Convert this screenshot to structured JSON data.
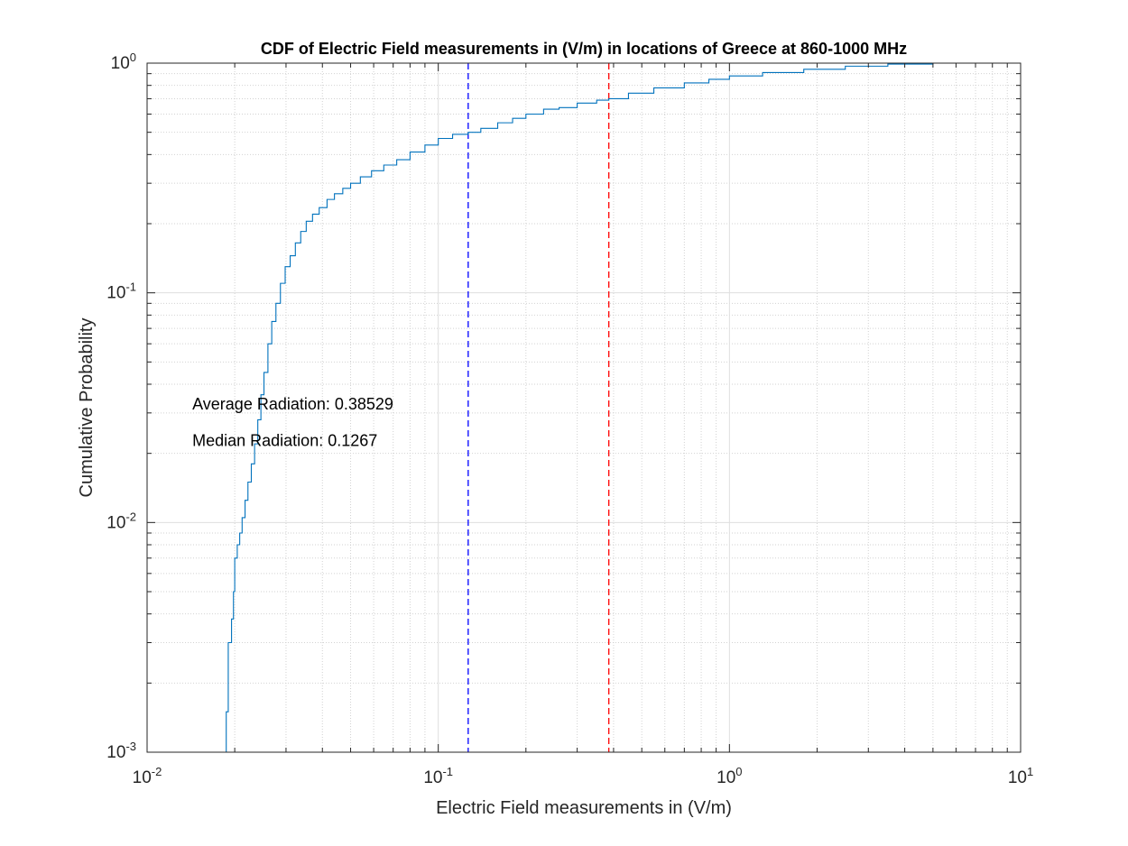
{
  "chart_data": {
    "type": "line",
    "title": "CDF of Electric Field measurements in (V/m) in locations of Greece at 860-1000 MHz",
    "xlabel": "Electric Field measurements in (V/m)",
    "ylabel": "Cumulative Probability",
    "xscale": "log",
    "yscale": "log",
    "xlim": [
      0.01,
      10
    ],
    "ylim": [
      0.001,
      1
    ],
    "grid": true,
    "minor_grid": true,
    "x_ticks": [
      {
        "value": 0.01,
        "base": "10",
        "exp": "-2"
      },
      {
        "value": 0.1,
        "base": "10",
        "exp": "-1"
      },
      {
        "value": 1,
        "base": "10",
        "exp": "0"
      },
      {
        "value": 10,
        "base": "10",
        "exp": "1"
      }
    ],
    "y_ticks": [
      {
        "value": 0.001,
        "base": "10",
        "exp": "-3"
      },
      {
        "value": 0.01,
        "base": "10",
        "exp": "-2"
      },
      {
        "value": 0.1,
        "base": "10",
        "exp": "-1"
      },
      {
        "value": 1,
        "base": "10",
        "exp": "0"
      }
    ],
    "series": [
      {
        "color": "#0072BD",
        "x": [
          0.0185,
          0.0187,
          0.019,
          0.0195,
          0.0198,
          0.02,
          0.0204,
          0.0208,
          0.0212,
          0.0217,
          0.0222,
          0.0228,
          0.0234,
          0.024,
          0.0246,
          0.0252,
          0.026,
          0.0268,
          0.0277,
          0.0287,
          0.0298,
          0.031,
          0.0323,
          0.0337,
          0.0352,
          0.037,
          0.039,
          0.0415,
          0.044,
          0.047,
          0.05,
          0.054,
          0.059,
          0.065,
          0.072,
          0.08,
          0.09,
          0.1,
          0.112,
          0.1267,
          0.14,
          0.16,
          0.18,
          0.2,
          0.23,
          0.26,
          0.3,
          0.35,
          0.38529,
          0.45,
          0.55,
          0.7,
          0.85,
          1.0,
          1.3,
          1.8,
          2.5,
          3.5,
          5,
          7,
          9
        ],
        "y": [
          0.001,
          0.0015,
          0.003,
          0.0038,
          0.005,
          0.007,
          0.008,
          0.009,
          0.0105,
          0.0125,
          0.015,
          0.018,
          0.022,
          0.028,
          0.036,
          0.045,
          0.06,
          0.075,
          0.09,
          0.11,
          0.13,
          0.145,
          0.165,
          0.185,
          0.205,
          0.22,
          0.235,
          0.255,
          0.27,
          0.285,
          0.3,
          0.32,
          0.34,
          0.36,
          0.38,
          0.41,
          0.44,
          0.47,
          0.49,
          0.5,
          0.52,
          0.55,
          0.575,
          0.6,
          0.63,
          0.64,
          0.67,
          0.69,
          0.7,
          0.74,
          0.78,
          0.82,
          0.85,
          0.88,
          0.91,
          0.94,
          0.97,
          0.99,
          1.0,
          1.0,
          1.0
        ]
      }
    ],
    "reference_lines": [
      {
        "x": 0.1267,
        "color": "#0000FF",
        "style": "dashed"
      },
      {
        "x": 0.38529,
        "color": "#FF0000",
        "style": "dashed"
      }
    ],
    "annotations": [
      {
        "text": "Average Radiation: 0.38529",
        "x": 0.0143,
        "y": 0.031
      },
      {
        "text": "Median Radiation: 0.1267",
        "x": 0.0143,
        "y": 0.0215
      }
    ]
  }
}
